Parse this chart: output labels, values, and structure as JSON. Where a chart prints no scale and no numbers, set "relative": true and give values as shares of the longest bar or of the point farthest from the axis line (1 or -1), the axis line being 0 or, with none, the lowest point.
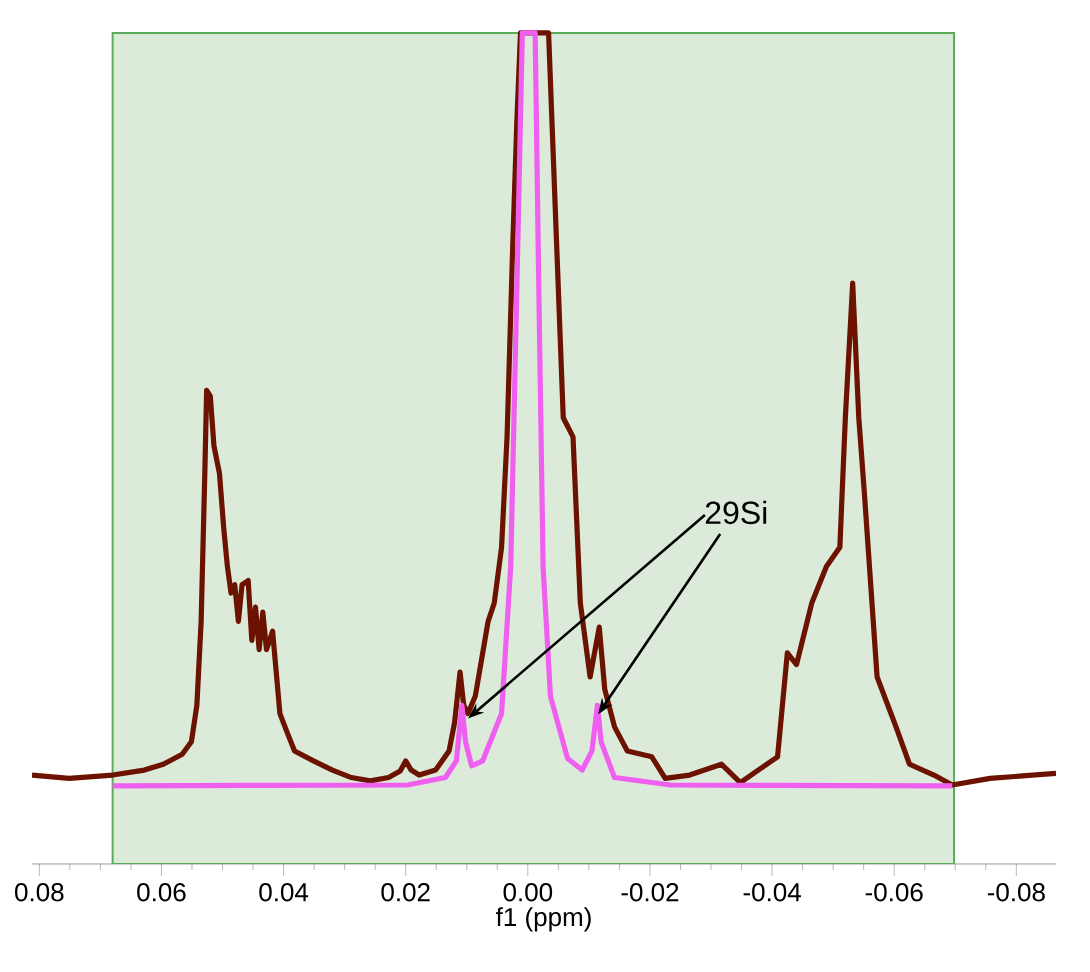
{
  "chart_data": {
    "type": "line",
    "xlabel": "f1 (ppm)",
    "relative": true,
    "tick_labels": "x",
    "marker": "none",
    "line_style": "solid",
    "xlim": [
      0.0812,
      -0.0865
    ],
    "xticks": [
      {
        "value": 0.08,
        "label": "0.08"
      },
      {
        "value": 0.06,
        "label": "0.06"
      },
      {
        "value": 0.04,
        "label": "0.04"
      },
      {
        "value": 0.02,
        "label": "0.02"
      },
      {
        "value": 0,
        "label": "0.00"
      },
      {
        "value": -0.02,
        "label": "-0.02"
      },
      {
        "value": -0.04,
        "label": "-0.04"
      },
      {
        "value": -0.06,
        "label": "-0.06"
      },
      {
        "value": -0.08,
        "label": "-0.08"
      }
    ],
    "bands": [
      {
        "axis": "x",
        "from": 0.068,
        "to": -0.0698,
        "color": "#dcebd9"
      }
    ],
    "annotations": [
      "29Si"
    ],
    "series": [
      {
        "color": "#6b1200",
        "x": [
          0.0812,
          0.0751,
          0.068,
          0.0628,
          0.0597,
          0.0566,
          0.0551,
          0.0542,
          0.0535,
          0.0529,
          0.0526,
          0.052,
          0.0514,
          0.0505,
          0.0498,
          0.0492,
          0.0486,
          0.048,
          0.0474,
          0.0468,
          0.0458,
          0.0452,
          0.0446,
          0.044,
          0.0434,
          0.0428,
          0.0418,
          0.0406,
          0.0394,
          0.0382,
          0.0351,
          0.032,
          0.0289,
          0.0258,
          0.0228,
          0.0209,
          0.02,
          0.0191,
          0.0178,
          0.0151,
          0.0129,
          0.012,
          0.0111,
          0.0105,
          0.0098,
          0.0086,
          0.0065,
          0.0055,
          0.0043,
          0.0034,
          0.0025,
          0.0018,
          0.0012,
          -0.0034,
          -0.0058,
          -0.0074,
          -0.0086,
          -0.0102,
          -0.0117,
          -0.0126,
          -0.0142,
          -0.0163,
          -0.0203,
          -0.0225,
          -0.0265,
          -0.0317,
          -0.0348,
          -0.0409,
          -0.0425,
          -0.044,
          -0.0465,
          -0.0489,
          -0.0511,
          -0.052,
          -0.0532,
          -0.0542,
          -0.0551,
          -0.0572,
          -0.0603,
          -0.0625,
          -0.0665,
          -0.0695,
          -0.0757,
          -0.0865
        ],
        "values": [
          0.107,
          0.103,
          0.107,
          0.113,
          0.12,
          0.132,
          0.147,
          0.191,
          0.292,
          0.47,
          0.57,
          0.563,
          0.503,
          0.47,
          0.404,
          0.358,
          0.326,
          0.336,
          0.292,
          0.336,
          0.341,
          0.269,
          0.309,
          0.258,
          0.303,
          0.258,
          0.28,
          0.181,
          0.158,
          0.136,
          0.124,
          0.113,
          0.104,
          0.1,
          0.104,
          0.112,
          0.124,
          0.113,
          0.107,
          0.113,
          0.136,
          0.17,
          0.231,
          0.191,
          0.181,
          0.202,
          0.292,
          0.314,
          0.381,
          0.514,
          0.737,
          0.893,
          1.0,
          1.0,
          0.537,
          0.514,
          0.314,
          0.225,
          0.285,
          0.21,
          0.165,
          0.136,
          0.129,
          0.103,
          0.107,
          0.12,
          0.098,
          0.129,
          0.254,
          0.24,
          0.314,
          0.358,
          0.381,
          0.537,
          0.699,
          0.537,
          0.448,
          0.225,
          0.165,
          0.12,
          0.107,
          0.095,
          0.103,
          0.109
        ]
      },
      {
        "color": "#f060f0",
        "x": [
          0.068,
          0.0197,
          0.0135,
          0.0117,
          0.0108,
          0.0102,
          0.0092,
          0.0074,
          0.0043,
          0.0028,
          0.0018,
          0.0009,
          -0.0012,
          -0.0018,
          -0.0025,
          -0.0037,
          -0.0065,
          -0.0089,
          -0.0105,
          -0.0114,
          -0.012,
          -0.0142,
          -0.0234,
          -0.0695
        ],
        "values": [
          0.094,
          0.095,
          0.104,
          0.124,
          0.191,
          0.147,
          0.118,
          0.124,
          0.181,
          0.358,
          0.693,
          1.0,
          1.0,
          0.693,
          0.358,
          0.202,
          0.127,
          0.113,
          0.136,
          0.191,
          0.147,
          0.104,
          0.095,
          0.094
        ]
      }
    ]
  }
}
